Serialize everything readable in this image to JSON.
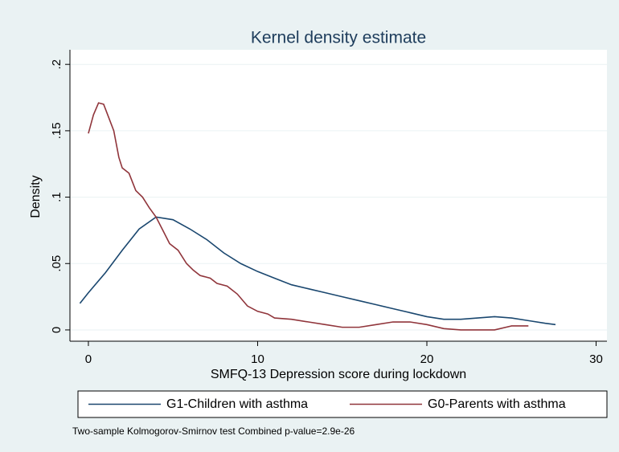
{
  "chart_data": {
    "type": "line",
    "title": "Kernel density estimate",
    "x_label": "SMFQ-13 Depression score  during lockdown",
    "y_label": "Density",
    "note": "Two-sample Kolmogorov-Smirnov test Combined p-value=2.9e-26",
    "xlim": [
      -1.09,
      30.64
    ],
    "ylim": [
      -0.0085,
      0.211
    ],
    "xticks": [
      0,
      10,
      20,
      30
    ],
    "yticks": [
      0,
      {
        "value": 0.05,
        "label": ".05"
      },
      {
        "value": 0.1,
        "label": ".1"
      },
      {
        "value": 0.15,
        "label": ".15"
      },
      {
        "value": 0.2,
        "label": ".2"
      }
    ],
    "grid": true,
    "legend": "bottom",
    "series": [
      {
        "name": "G1-Children with asthma",
        "color": "#1a476f",
        "x": [
          -0.5,
          0,
          1,
          2,
          3,
          4,
          5,
          6,
          7,
          8,
          9,
          10,
          11,
          12,
          13,
          14,
          15,
          16,
          17,
          18,
          19,
          20,
          21,
          22,
          23,
          24,
          25,
          26,
          27,
          27.6
        ],
        "values": [
          0.02,
          0.028,
          0.043,
          0.06,
          0.076,
          0.085,
          0.083,
          0.076,
          0.068,
          0.058,
          0.05,
          0.044,
          0.039,
          0.034,
          0.031,
          0.028,
          0.025,
          0.022,
          0.019,
          0.016,
          0.013,
          0.01,
          0.008,
          0.008,
          0.009,
          0.01,
          0.009,
          0.007,
          0.005,
          0.004
        ]
      },
      {
        "name": "G0-Parents with asthma",
        "color": "#90353b",
        "x": [
          0,
          0.3,
          0.6,
          0.9,
          1.2,
          1.5,
          1.8,
          2,
          2.4,
          2.8,
          3.2,
          3.6,
          4,
          4.4,
          4.8,
          5.3,
          5.8,
          6.2,
          6.6,
          7.2,
          7.6,
          8.2,
          8.8,
          9.4,
          10,
          10.6,
          11,
          12,
          13,
          14,
          15,
          16,
          17,
          18,
          19,
          20,
          21,
          22,
          23,
          24,
          25,
          26
        ],
        "values": [
          0.148,
          0.162,
          0.171,
          0.17,
          0.16,
          0.15,
          0.13,
          0.122,
          0.118,
          0.105,
          0.1,
          0.092,
          0.085,
          0.075,
          0.065,
          0.06,
          0.05,
          0.045,
          0.041,
          0.039,
          0.035,
          0.033,
          0.027,
          0.018,
          0.014,
          0.012,
          0.009,
          0.008,
          0.006,
          0.004,
          0.002,
          0.002,
          0.004,
          0.006,
          0.006,
          0.004,
          0.001,
          0,
          0,
          0,
          0.003,
          0.003
        ]
      }
    ]
  }
}
